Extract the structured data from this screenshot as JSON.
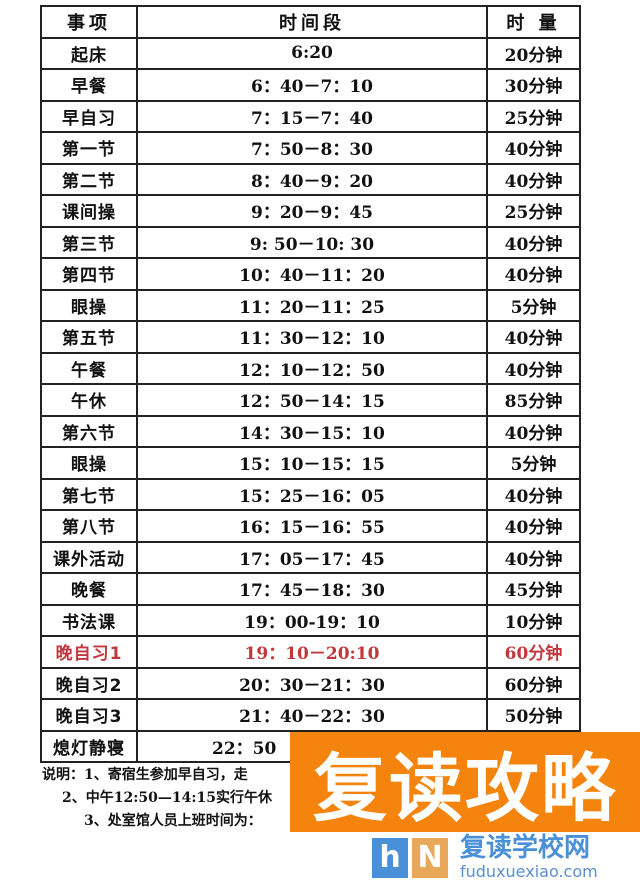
{
  "header": {
    "item": "事项",
    "period": "时间段",
    "duration": "时 量"
  },
  "rows": [
    {
      "item": "起床",
      "period": "6:20",
      "duration": "20分钟"
    },
    {
      "item": "早餐",
      "period": "6：40－7：10",
      "duration": "30分钟"
    },
    {
      "item": "早自习",
      "period": "7：15－7：40",
      "duration": "25分钟"
    },
    {
      "item": "第一节",
      "period": "7：50－8：30",
      "duration": "40分钟"
    },
    {
      "item": "第二节",
      "period": "8：40－9：20",
      "duration": "40分钟"
    },
    {
      "item": "课间操",
      "period": "9：20－9：45",
      "duration": "25分钟"
    },
    {
      "item": "第三节",
      "period": "9: 50－10: 30",
      "duration": "40分钟"
    },
    {
      "item": "第四节",
      "period": "10：40－11：20",
      "duration": "40分钟"
    },
    {
      "item": "眼操",
      "period": "11：20－11：25",
      "duration": "5分钟"
    },
    {
      "item": "第五节",
      "period": "11：30－12：10",
      "duration": "40分钟"
    },
    {
      "item": "午餐",
      "period": "12：10－12：50",
      "duration": "40分钟"
    },
    {
      "item": "午休",
      "period": "12：50－14：15",
      "duration": "85分钟"
    },
    {
      "item": "第六节",
      "period": "14：30－15：10",
      "duration": "40分钟"
    },
    {
      "item": "眼操",
      "period": "15：10－15：15",
      "duration": "5分钟"
    },
    {
      "item": "第七节",
      "period": "15：25－16：05",
      "duration": "40分钟"
    },
    {
      "item": "第八节",
      "period": "16：15－16：55",
      "duration": "40分钟"
    },
    {
      "item": "课外活动",
      "period": "17：05－17：45",
      "duration": "40分钟"
    },
    {
      "item": "晚餐",
      "period": "17：45－18：30",
      "duration": "45分钟"
    },
    {
      "item": "书法课",
      "period": "19：00-19：10",
      "duration": "10分钟"
    },
    {
      "item": "晚自习1",
      "period": "19：10－20:10",
      "duration": "60分钟",
      "highlight": "#c0383c"
    },
    {
      "item": "晚自习2",
      "period": "20：30－21：30",
      "duration": "60分钟"
    },
    {
      "item": "晚自习3",
      "period": "21：40－22：30",
      "duration": "50分钟"
    },
    {
      "item": "熄灯静寝",
      "period": "22：50",
      "duration": ""
    }
  ],
  "notes": [
    "说明：1、寄宿生参加早自习，走",
    "2、中午12:50—14:15实行午休",
    "3、处室馆人员上班时间为："
  ],
  "watermark": {
    "text": "复读攻略",
    "color": "#f5840f"
  },
  "logo": {
    "mark1": "h",
    "mark2": "N",
    "name": "复读学校网",
    "domain": "fuduxuexiao.com"
  }
}
